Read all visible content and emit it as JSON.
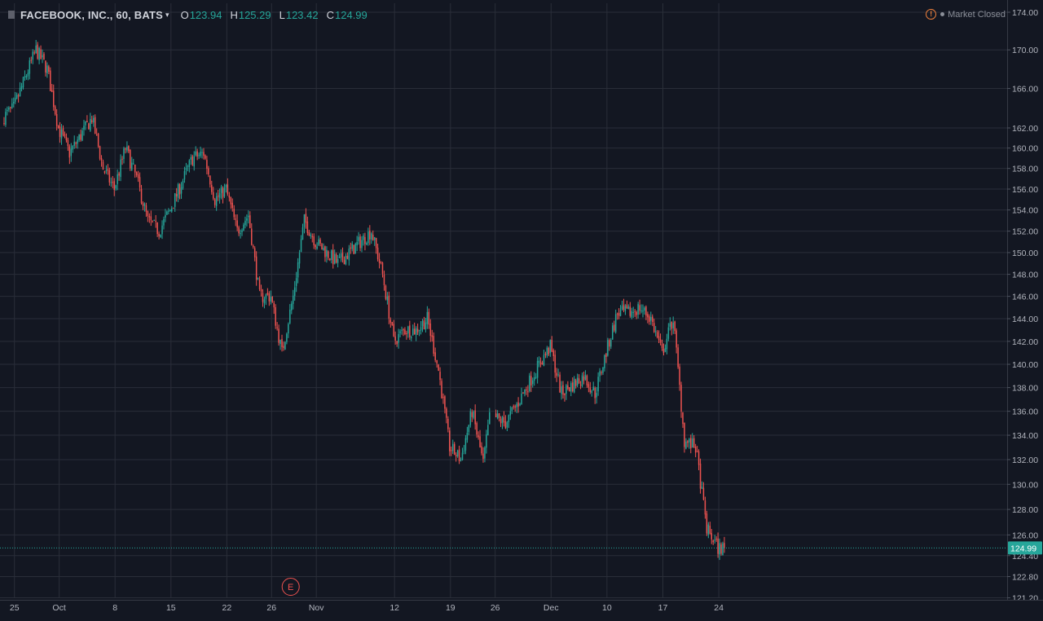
{
  "header": {
    "symbol": "FACEBOOK, INC., 60, BATS",
    "caret": "▾",
    "open_label": "O",
    "open": "123.94",
    "high_label": "H",
    "high": "125.29",
    "low_label": "L",
    "low": "123.42",
    "close_label": "C",
    "close": "124.99"
  },
  "status": {
    "icon": "warning-icon",
    "text": "Market Closed"
  },
  "colors": {
    "background": "#131722",
    "up": "#26a69a",
    "down": "#ef5350",
    "grid": "#2a2e39",
    "axis_text": "#b2b5be"
  },
  "last_price_label": "124.99",
  "earnings_marker": {
    "label": "E",
    "date": "Oct 30"
  },
  "chart_data": {
    "type": "candlestick",
    "symbol": "FACEBOOK, INC.",
    "interval": "60",
    "exchange": "BATS",
    "yticks": [
      "121.20",
      "122.80",
      "124.40",
      "126.00",
      "128.00",
      "130.00",
      "132.00",
      "134.00",
      "136.00",
      "138.00",
      "140.00",
      "142.00",
      "144.00",
      "146.00",
      "148.00",
      "150.00",
      "152.00",
      "154.00",
      "156.00",
      "158.00",
      "160.00",
      "162.00",
      "166.00",
      "170.00",
      "174.00"
    ],
    "yscale": "log",
    "xticks": [
      "25",
      "Oct",
      "8",
      "15",
      "22",
      "26",
      "Nov",
      "12",
      "19",
      "26",
      "Dec",
      "10",
      "17",
      "24"
    ],
    "last_price": 124.99,
    "grid": true,
    "approximate_close_path": [
      {
        "date": "Sep 24",
        "close": 163
      },
      {
        "date": "Sep 25",
        "close": 164
      },
      {
        "date": "Sep 27",
        "close": 170
      },
      {
        "date": "Sep 28",
        "close": 168
      },
      {
        "date": "Oct 1",
        "close": 162
      },
      {
        "date": "Oct 2",
        "close": 159.5
      },
      {
        "date": "Oct 4",
        "close": 163
      },
      {
        "date": "Oct 5",
        "close": 158
      },
      {
        "date": "Oct 8",
        "close": 156
      },
      {
        "date": "Oct 9",
        "close": 160
      },
      {
        "date": "Oct 10",
        "close": 157
      },
      {
        "date": "Oct 11",
        "close": 153
      },
      {
        "date": "Oct 12",
        "close": 152
      },
      {
        "date": "Oct 15",
        "close": 154
      },
      {
        "date": "Oct 17",
        "close": 159
      },
      {
        "date": "Oct 18",
        "close": 159.5
      },
      {
        "date": "Oct 19",
        "close": 155
      },
      {
        "date": "Oct 22",
        "close": 156
      },
      {
        "date": "Oct 23",
        "close": 152
      },
      {
        "date": "Oct 24",
        "close": 153.5
      },
      {
        "date": "Oct 25",
        "close": 146
      },
      {
        "date": "Oct 26",
        "close": 146
      },
      {
        "date": "Oct 29",
        "close": 141
      },
      {
        "date": "Oct 30",
        "close": 146
      },
      {
        "date": "Oct 31",
        "close": 153
      },
      {
        "date": "Nov 1",
        "close": 151
      },
      {
        "date": "Nov 5",
        "close": 149
      },
      {
        "date": "Nov 8",
        "close": 152
      },
      {
        "date": "Nov 9",
        "close": 148
      },
      {
        "date": "Nov 12",
        "close": 142
      },
      {
        "date": "Nov 13",
        "close": 143
      },
      {
        "date": "Nov 14",
        "close": 143
      },
      {
        "date": "Nov 15",
        "close": 144
      },
      {
        "date": "Nov 16",
        "close": 139.5
      },
      {
        "date": "Nov 19",
        "close": 133
      },
      {
        "date": "Nov 20",
        "close": 132
      },
      {
        "date": "Nov 21",
        "close": 136
      },
      {
        "date": "Nov 23",
        "close": 131.7
      },
      {
        "date": "Nov 26",
        "close": 135.5
      },
      {
        "date": "Nov 27",
        "close": 135
      },
      {
        "date": "Nov 28",
        "close": 136.5
      },
      {
        "date": "Nov 30",
        "close": 140
      },
      {
        "date": "Dec 3",
        "close": 141.5
      },
      {
        "date": "Dec 4",
        "close": 137.5
      },
      {
        "date": "Dec 6",
        "close": 139
      },
      {
        "date": "Dec 7",
        "close": 137.5
      },
      {
        "date": "Dec 10",
        "close": 141
      },
      {
        "date": "Dec 11",
        "close": 144.5
      },
      {
        "date": "Dec 12",
        "close": 144.5
      },
      {
        "date": "Dec 13",
        "close": 145
      },
      {
        "date": "Dec 14",
        "close": 144
      },
      {
        "date": "Dec 17",
        "close": 141
      },
      {
        "date": "Dec 18",
        "close": 144
      },
      {
        "date": "Dec 19",
        "close": 133.5
      },
      {
        "date": "Dec 20",
        "close": 133
      },
      {
        "date": "Dec 21",
        "close": 126.5
      },
      {
        "date": "Dec 24",
        "close": 124.99
      }
    ]
  }
}
